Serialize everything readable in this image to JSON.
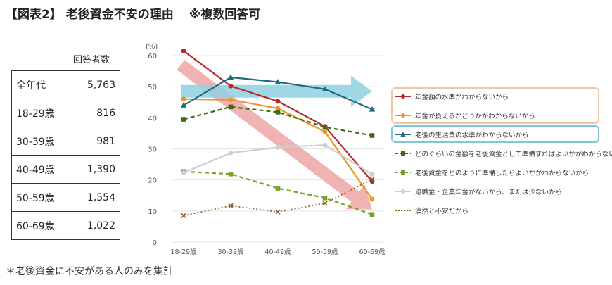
{
  "header": {
    "title": "【図表2】 老後資金不安の理由",
    "subtitle": "※複数回答可"
  },
  "respondents": {
    "header": "回答者数",
    "rows": [
      {
        "age": "全年代",
        "count": "5,763"
      },
      {
        "age": "18-29歳",
        "count": "816"
      },
      {
        "age": "30-39歳",
        "count": "981"
      },
      {
        "age": "40-49歳",
        "count": "1,390"
      },
      {
        "age": "50-59歳",
        "count": "1,554"
      },
      {
        "age": "60-69歳",
        "count": "1,022"
      }
    ]
  },
  "note": "＊老後資金に不安がある人のみを集計",
  "chart_data": {
    "type": "line",
    "unit_label": "(%)",
    "categories": [
      "18-29歳",
      "30-39歳",
      "40-49歳",
      "50-59歳",
      "60-69歳"
    ],
    "ylim": [
      0,
      60
    ],
    "yticks": [
      0,
      10,
      20,
      30,
      40,
      50,
      60
    ],
    "grid": true,
    "legend_position": "right",
    "series": [
      {
        "name": "年金額の水準がわからないから",
        "values": [
          61.5,
          50.2,
          45.3,
          37.2,
          19.5
        ],
        "color": "#b22a2a",
        "marker": "circle",
        "dash": "solid",
        "highlight": "#e9a0a0"
      },
      {
        "name": "年金が貰えるかどうかがわからないから",
        "values": [
          46.0,
          45.8,
          43.0,
          35.5,
          13.8
        ],
        "color": "#e8962a",
        "marker": "circle",
        "dash": "solid",
        "highlight": "#f2c7a0"
      },
      {
        "name": "老後の生活費の水準がわからないから",
        "values": [
          44.0,
          53.0,
          51.5,
          49.2,
          42.7
        ],
        "color": "#1f6a7e",
        "marker": "triangle",
        "dash": "solid",
        "highlight": "#7ec8d8"
      },
      {
        "name": "どのぐらいの金額を老後資金として準備すればよいかがわからないから",
        "values": [
          39.5,
          43.5,
          41.8,
          37.0,
          34.3
        ],
        "color": "#3f6a14",
        "marker": "square",
        "dash": "dashed",
        "highlight": null
      },
      {
        "name": "老後資金をどのように準備したらよいかがわからないから",
        "values": [
          22.7,
          21.9,
          17.3,
          14.2,
          8.9
        ],
        "color": "#7aa22a",
        "marker": "square",
        "dash": "dashed",
        "highlight": null
      },
      {
        "name": "退職金・企業年金がないから、または少ないから",
        "values": [
          22.3,
          28.7,
          30.5,
          31.2,
          21.8
        ],
        "color": "#cfcfcf",
        "marker": "circle",
        "dash": "solid",
        "highlight": null
      },
      {
        "name": "漠然と不安だから",
        "values": [
          8.5,
          11.7,
          9.7,
          12.5,
          20.2
        ],
        "color": "#8a5a1a",
        "marker": "x",
        "dash": "dotted",
        "highlight": null
      }
    ],
    "arrows": [
      {
        "from": [
          0,
          57
        ],
        "to": [
          4.0,
          10.5
        ],
        "color": "#eea5a5"
      },
      {
        "from": [
          0,
          48.5
        ],
        "to": [
          4.0,
          48.5
        ],
        "color": "#8fd0e0"
      }
    ]
  }
}
